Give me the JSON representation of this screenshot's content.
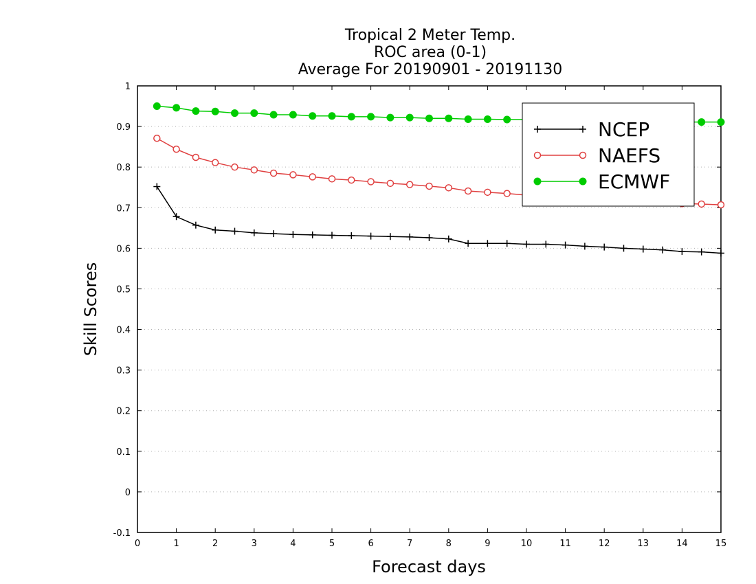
{
  "chart_data": {
    "type": "line",
    "title": [
      "Tropical 2 Meter Temp.",
      "ROC area (0-1)",
      "Average For 20190901 - 20191130"
    ],
    "xlabel": "Forecast days",
    "ylabel": "Skill Scores",
    "xlim": [
      0,
      15
    ],
    "ylim": [
      -0.1,
      1
    ],
    "xticks": [
      "0",
      "1",
      "2",
      "3",
      "4",
      "5",
      "6",
      "7",
      "8",
      "9",
      "10",
      "11",
      "12",
      "13",
      "14",
      "15"
    ],
    "yticks": [
      "-0.1",
      "0",
      "0.1",
      "0.2",
      "0.3",
      "0.4",
      "0.5",
      "0.6",
      "0.7",
      "0.8",
      "0.9",
      "1"
    ],
    "grid": "horizontal dotted",
    "legend": "top-right",
    "x": [
      0.5,
      1,
      1.5,
      2,
      2.5,
      3,
      3.5,
      4,
      4.5,
      5,
      5.5,
      6,
      6.5,
      7,
      7.5,
      8,
      8.5,
      9,
      9.5,
      10,
      10.5,
      11,
      11.5,
      12,
      12.5,
      13,
      13.5,
      14,
      14.5,
      15
    ],
    "series": [
      {
        "name": "NCEP",
        "color": "#000000",
        "marker": "plus",
        "values": [
          0.752,
          0.678,
          0.657,
          0.645,
          0.642,
          0.638,
          0.636,
          0.634,
          0.633,
          0.632,
          0.631,
          0.63,
          0.629,
          0.628,
          0.626,
          0.623,
          0.612,
          0.612,
          0.612,
          0.61,
          0.61,
          0.608,
          0.605,
          0.603,
          0.6,
          0.598,
          0.596,
          0.592,
          0.591,
          0.588
        ]
      },
      {
        "name": "NAEFS",
        "color": "#e04040",
        "marker": "open-circle",
        "values": [
          0.871,
          0.844,
          0.824,
          0.811,
          0.8,
          0.793,
          0.785,
          0.781,
          0.776,
          0.771,
          0.768,
          0.764,
          0.76,
          0.757,
          0.753,
          0.749,
          0.741,
          0.738,
          0.735,
          0.731,
          0.728,
          0.725,
          0.722,
          0.719,
          0.716,
          0.714,
          0.712,
          0.71,
          0.709,
          0.707
        ]
      },
      {
        "name": "ECMWF",
        "color": "#00cc00",
        "marker": "filled-circle",
        "values": [
          0.95,
          0.946,
          0.938,
          0.937,
          0.933,
          0.933,
          0.929,
          0.929,
          0.926,
          0.926,
          0.924,
          0.924,
          0.922,
          0.922,
          0.92,
          0.92,
          0.918,
          0.918,
          0.917,
          0.917,
          0.916,
          0.915,
          0.914,
          0.913,
          0.913,
          0.912,
          0.912,
          0.911,
          0.911,
          0.911
        ]
      }
    ]
  }
}
